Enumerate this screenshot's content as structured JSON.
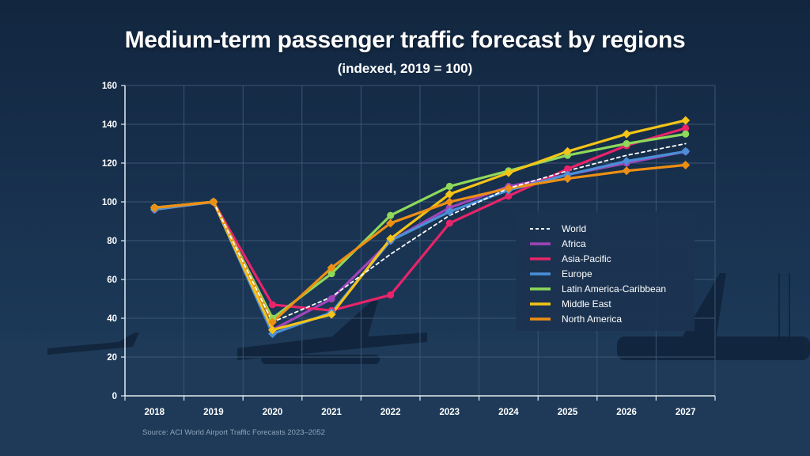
{
  "title": "Medium-term passenger traffic forecast by regions",
  "subtitle": "(indexed, 2019 = 100)",
  "source": "Source: ACI World Airport Traffic Forecasts 2023–2052",
  "colors": {
    "background": "#142a44",
    "axis": "#e6ecf2",
    "grid": "#3b5673",
    "tick_text": "#ffffff",
    "legend_bg": "#1b3350"
  },
  "chart_data": {
    "type": "line",
    "x": [
      "2018",
      "2019",
      "2020",
      "2021",
      "2022",
      "2023",
      "2024",
      "2025",
      "2026",
      "2027"
    ],
    "ylim": [
      0,
      160
    ],
    "yticks": [
      0,
      20,
      40,
      60,
      80,
      100,
      120,
      140,
      160
    ],
    "grid": true,
    "legend_position": "right",
    "series": [
      {
        "name": "World",
        "color": "#ffffff",
        "dashed": true,
        "marker": "none",
        "values": [
          null,
          100,
          38,
          51,
          73,
          93,
          107,
          116,
          124,
          130
        ]
      },
      {
        "name": "Africa",
        "color": "#a045b8",
        "dashed": false,
        "marker": "circle",
        "values": [
          null,
          100,
          34,
          50,
          80,
          97,
          108,
          114,
          120,
          126
        ]
      },
      {
        "name": "Asia-Pacific",
        "color": "#e8246a",
        "dashed": false,
        "marker": "circle",
        "values": [
          96,
          100,
          47,
          44,
          52,
          89,
          103,
          117,
          129,
          138
        ]
      },
      {
        "name": "Europe",
        "color": "#4a8fd8",
        "dashed": false,
        "marker": "diamond",
        "values": [
          96,
          100,
          32,
          43,
          80,
          95,
          106,
          114,
          121,
          126
        ]
      },
      {
        "name": "Latin America-Caribbean",
        "color": "#8fd95a",
        "dashed": false,
        "marker": "circle",
        "values": [
          97,
          100,
          40,
          63,
          93,
          108,
          116,
          124,
          130,
          135
        ]
      },
      {
        "name": "Middle East",
        "color": "#f5c417",
        "dashed": false,
        "marker": "diamond",
        "values": [
          97,
          100,
          34,
          42,
          81,
          104,
          115,
          126,
          135,
          142
        ]
      },
      {
        "name": "North America",
        "color": "#ee8f14",
        "dashed": false,
        "marker": "diamond",
        "values": [
          97,
          100,
          38,
          66,
          89,
          100,
          107,
          112,
          116,
          119
        ]
      }
    ]
  }
}
